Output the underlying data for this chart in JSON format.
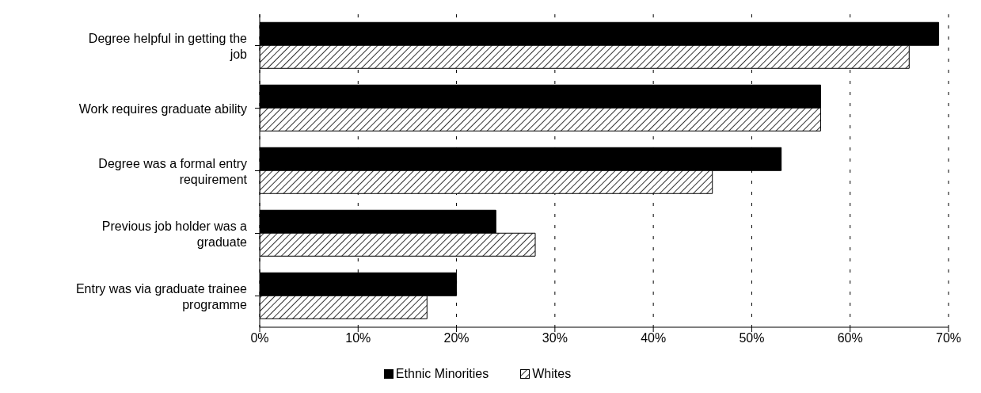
{
  "chart_data": {
    "type": "bar",
    "orientation": "horizontal",
    "categories": [
      "Degree helpful in getting the job",
      "Work requires graduate ability",
      "Degree was a formal entry requirement",
      "Previous job holder was a graduate",
      "Entry was via graduate trainee programme"
    ],
    "series": [
      {
        "name": "Ethnic Minorities",
        "color": "#000000",
        "values": [
          69,
          57,
          53,
          24,
          20
        ]
      },
      {
        "name": "Whites",
        "color": "#000000",
        "values": [
          66,
          57,
          46,
          28,
          17
        ]
      }
    ],
    "xlim": [
      0,
      70
    ],
    "xticks": [
      {
        "value": 0,
        "label": "0%"
      },
      {
        "value": 10,
        "label": "10%"
      },
      {
        "value": 20,
        "label": "20%"
      },
      {
        "value": 30,
        "label": "30%"
      },
      {
        "value": 40,
        "label": "40%"
      },
      {
        "value": 50,
        "label": "50%"
      },
      {
        "value": 60,
        "label": "60%"
      },
      {
        "value": 70,
        "label": "70%"
      }
    ],
    "grid": "x",
    "legend": "bottom"
  }
}
